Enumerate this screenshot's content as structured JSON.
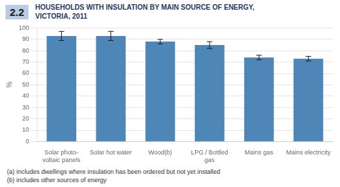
{
  "chart_data": {
    "type": "bar",
    "title_number": "2.2",
    "title": "HOUSEHOLDS WITH INSULATION BY MAIN SOURCE OF ENERGY,\nVICTORIA, 2011",
    "ylabel": "%",
    "categories": [
      "Solar photo-\nvoltaic panels",
      "Solar hot water",
      "Wood(b)",
      "LPG / Bottled\ngas",
      "Mains gas",
      "Mains electricity"
    ],
    "values": [
      93,
      93,
      88,
      85,
      74,
      73
    ],
    "errors": [
      4,
      4,
      2,
      3,
      2,
      2
    ],
    "color": "#4e86b8",
    "ylim": [
      0,
      100
    ],
    "yticks": [
      0,
      10,
      20,
      30,
      40,
      50,
      60,
      70,
      80,
      90,
      100
    ],
    "grid": true,
    "annotations": [
      "(a) Includes dwellings where insulation has been ordered but not yet installed",
      "(b) includes other sources of energy"
    ]
  }
}
